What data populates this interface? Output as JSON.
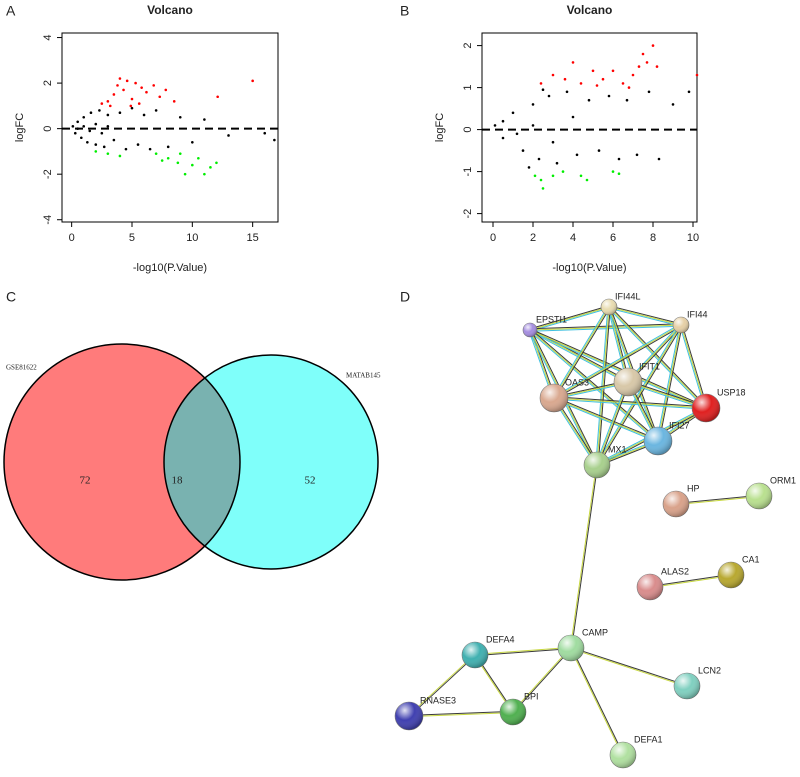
{
  "chart_data": [
    {
      "type": "scatter",
      "panel": "A",
      "title": "Volcano",
      "xlabel": "-log10(P.Value)",
      "ylabel": "logFC",
      "xlim": [
        -0.8,
        17.1
      ],
      "ylim": [
        -4.1,
        4.2
      ],
      "xticks": [
        0,
        5,
        10,
        15
      ],
      "yticks": [
        -4,
        -2,
        0,
        2,
        4
      ],
      "hlines": [
        0
      ],
      "series": [
        {
          "color": "#000000",
          "x": [
            0.1,
            0.3,
            0.5,
            0.8,
            1,
            1.3,
            1.6,
            2,
            2.3,
            2.7,
            3,
            3.5,
            4,
            4.5,
            5,
            5.5,
            6,
            6.5,
            7,
            8,
            9,
            10,
            11,
            13,
            16,
            16.8,
            0.5,
            1,
            1.5,
            2,
            2.5,
            3
          ],
          "values": [
            0.1,
            -0.2,
            0.3,
            -0.4,
            0.5,
            -0.6,
            0.7,
            -0.7,
            0.8,
            -0.8,
            0.6,
            -0.5,
            0.7,
            -0.9,
            0.9,
            -0.7,
            0.6,
            -0.9,
            0.8,
            -0.8,
            0.5,
            -0.6,
            0.4,
            -0.3,
            -0.2,
            -0.5,
            0,
            0.1,
            -0.1,
            0.2,
            -0.2,
            0.1
          ]
        },
        {
          "color": "#ff0000",
          "x": [
            2.5,
            3,
            3.5,
            3.8,
            4,
            4.3,
            4.6,
            5,
            5.3,
            5.8,
            6.2,
            6.8,
            7.3,
            7.8,
            3.2,
            4.9,
            5.6,
            12.1,
            15,
            8.5
          ],
          "values": [
            1.1,
            1.2,
            1.5,
            1.9,
            2.2,
            1.7,
            2.1,
            1.3,
            2.0,
            1.8,
            1.6,
            1.9,
            1.4,
            1.7,
            1.0,
            1.0,
            1.1,
            1.4,
            2.1,
            1.2
          ]
        },
        {
          "color": "#00ee00",
          "x": [
            2,
            3,
            4,
            7,
            8,
            8.8,
            9.4,
            10,
            10.5,
            11,
            11.5,
            9,
            7.5,
            12
          ],
          "values": [
            -1.0,
            -1.1,
            -1.2,
            -1.1,
            -1.3,
            -1.5,
            -2.0,
            -1.6,
            -1.3,
            -2.0,
            -1.7,
            -1.1,
            -1.4,
            -1.5
          ]
        }
      ]
    },
    {
      "type": "scatter",
      "panel": "B",
      "title": "Volcano",
      "xlabel": "-log10(P.Value)",
      "ylabel": "logFC",
      "xlim": [
        -0.55,
        10.2
      ],
      "ylim": [
        -2.2,
        2.3
      ],
      "xticks": [
        0,
        2,
        4,
        6,
        8,
        10
      ],
      "yticks": [
        -2,
        -1,
        0,
        1,
        2
      ],
      "hlines": [
        0
      ],
      "series": [
        {
          "color": "#000000",
          "x": [
            0.1,
            0.5,
            1,
            1.5,
            2,
            2.3,
            2.8,
            3.2,
            3.7,
            4.2,
            4.8,
            5.3,
            5.8,
            6.3,
            6.7,
            7.2,
            7.8,
            8.3,
            9,
            9.8,
            0.5,
            1.2,
            2,
            3,
            4,
            1.8,
            2.5
          ],
          "values": [
            0.1,
            -0.2,
            0.4,
            -0.5,
            0.6,
            -0.7,
            0.8,
            -0.8,
            0.9,
            -0.6,
            0.7,
            -0.5,
            0.8,
            -0.7,
            0.7,
            -0.6,
            0.9,
            -0.7,
            0.6,
            0.9,
            0.2,
            -0.1,
            0.1,
            -0.3,
            0.3,
            -0.9,
            0.95
          ]
        },
        {
          "color": "#ff0000",
          "x": [
            2.4,
            3,
            3.6,
            4,
            4.4,
            5,
            5.5,
            6,
            6.5,
            7,
            7.5,
            7.7,
            8,
            8.2,
            7.3,
            10.2,
            6.8,
            5.2
          ],
          "values": [
            1.1,
            1.3,
            1.2,
            1.6,
            1.1,
            1.4,
            1.2,
            1.4,
            1.1,
            1.3,
            1.8,
            1.6,
            2.0,
            1.5,
            1.5,
            1.3,
            1.0,
            1.05
          ]
        },
        {
          "color": "#00ee00",
          "x": [
            2.1,
            2.4,
            2.5,
            3,
            3.5,
            4.4,
            4.7,
            6,
            6.3
          ],
          "values": [
            -1.1,
            -1.2,
            -1.4,
            -1.1,
            -1.0,
            -1.1,
            -1.2,
            -1.0,
            -1.05
          ]
        }
      ]
    },
    {
      "type": "venn",
      "panel": "C",
      "sets": [
        {
          "name": "GSE81622",
          "color": "#ff7b7b"
        },
        {
          "name": "MATAB145",
          "color": "#7ffffa"
        }
      ],
      "overlap_color": "#79b2b0",
      "counts": [
        72,
        18,
        52
      ]
    },
    {
      "type": "network",
      "panel": "D",
      "nodes": [
        {
          "label": "EPSTI1",
          "color": "#a58ee0"
        },
        {
          "label": "IFI44L",
          "color": "#e8dcb0"
        },
        {
          "label": "IFI44",
          "color": "#e6d0a6"
        },
        {
          "label": "OAS3",
          "color": "#d9a88f"
        },
        {
          "label": "IFIT1",
          "color": "#d8c8a8"
        },
        {
          "label": "USP18",
          "color": "#e02020"
        },
        {
          "label": "IFI27",
          "color": "#6bb6e0"
        },
        {
          "label": "MX1",
          "color": "#a8d08d"
        },
        {
          "label": "HP",
          "color": "#d9a28a"
        },
        {
          "label": "ORM1",
          "color": "#b9e08f"
        },
        {
          "label": "ALAS2",
          "color": "#d98c8c"
        },
        {
          "label": "CA1",
          "color": "#b8a830"
        },
        {
          "label": "CAMP",
          "color": "#a0dca0"
        },
        {
          "label": "DEFA4",
          "color": "#40b0b0"
        },
        {
          "label": "LCN2",
          "color": "#80d0c0"
        },
        {
          "label": "BPI",
          "color": "#50b050"
        },
        {
          "label": "RNASE3",
          "color": "#4040b0"
        },
        {
          "label": "DEFA1",
          "color": "#b0e0a0"
        }
      ],
      "edges": [
        [
          "EPSTI1",
          "IFI44L"
        ],
        [
          "EPSTI1",
          "IFI44"
        ],
        [
          "EPSTI1",
          "OAS3"
        ],
        [
          "EPSTI1",
          "IFIT1"
        ],
        [
          "EPSTI1",
          "USP18"
        ],
        [
          "EPSTI1",
          "IFI27"
        ],
        [
          "EPSTI1",
          "MX1"
        ],
        [
          "IFI44L",
          "IFI44"
        ],
        [
          "IFI44L",
          "OAS3"
        ],
        [
          "IFI44L",
          "IFIT1"
        ],
        [
          "IFI44L",
          "USP18"
        ],
        [
          "IFI44L",
          "IFI27"
        ],
        [
          "IFI44L",
          "MX1"
        ],
        [
          "IFI44",
          "OAS3"
        ],
        [
          "IFI44",
          "IFIT1"
        ],
        [
          "IFI44",
          "USP18"
        ],
        [
          "IFI44",
          "IFI27"
        ],
        [
          "IFI44",
          "MX1"
        ],
        [
          "OAS3",
          "IFIT1"
        ],
        [
          "OAS3",
          "USP18"
        ],
        [
          "OAS3",
          "IFI27"
        ],
        [
          "OAS3",
          "MX1"
        ],
        [
          "IFIT1",
          "USP18"
        ],
        [
          "IFIT1",
          "IFI27"
        ],
        [
          "IFIT1",
          "MX1"
        ],
        [
          "USP18",
          "IFI27"
        ],
        [
          "USP18",
          "MX1"
        ],
        [
          "IFI27",
          "MX1"
        ],
        [
          "MX1",
          "CAMP"
        ],
        [
          "HP",
          "ORM1"
        ],
        [
          "ALAS2",
          "CA1"
        ],
        [
          "CAMP",
          "DEFA4"
        ],
        [
          "CAMP",
          "BPI"
        ],
        [
          "CAMP",
          "LCN2"
        ],
        [
          "CAMP",
          "DEFA1"
        ],
        [
          "DEFA4",
          "BPI"
        ],
        [
          "DEFA4",
          "RNASE3"
        ],
        [
          "RNASE3",
          "BPI"
        ]
      ]
    }
  ]
}
